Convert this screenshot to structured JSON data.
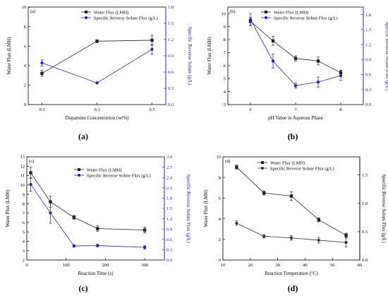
{
  "colors": {
    "water_series": "#222222",
    "solute_series_blue": "#1f1fd6",
    "solute_series_dark": "#333333",
    "axis_left": "#000000",
    "axis_right_blue": "#2222cc",
    "axis_right_dark": "#000000"
  },
  "chart_data": [
    {
      "type": "line",
      "panel_tag": "(a)",
      "caption": "(a)",
      "xlabel": "Dopamine Concentration (wt%)",
      "ylabel": "Water Flux (LMH)",
      "y2label": "Specific Reverse Solute (g/L)",
      "xlim": [
        0.05,
        0.55
      ],
      "ylim": [
        0,
        10
      ],
      "y2lim": [
        0,
        1.8
      ],
      "xticks": [
        0.1,
        0.3,
        0.5
      ],
      "xtick_labels": [
        "0.1",
        "0.3",
        "0.5"
      ],
      "yticks": [
        0,
        2,
        4,
        6,
        8,
        10
      ],
      "ytick_labels": [
        "0",
        "2",
        "4",
        "6",
        "8",
        "10"
      ],
      "y2ticks": [
        0,
        0.3,
        0.6,
        0.9,
        1.2,
        1.5,
        1.8
      ],
      "y2tick_labels": [
        "0.0",
        "0.3",
        "0.6",
        "0.9",
        "1.2",
        "1.5",
        "1.8"
      ],
      "legend_position": "top-right",
      "series": [
        {
          "name": "Water Flux (LMH)",
          "axis": "left",
          "marker": "square",
          "x": [
            0.1,
            0.3,
            0.5
          ],
          "values": [
            3.2,
            6.5,
            6.6
          ],
          "errors": [
            0.3,
            0.15,
            0.5
          ]
        },
        {
          "name": "Specific Reverse Solute Flux (g/L)",
          "axis": "right",
          "marker": "circle",
          "x": [
            0.1,
            0.3,
            0.5
          ],
          "values": [
            0.77,
            0.4,
            1.02
          ],
          "errors": [
            0.06,
            0.02,
            0.09
          ]
        }
      ]
    },
    {
      "type": "line",
      "panel_tag": "(b)",
      "caption": "(b)",
      "xlabel": "pH Value in Aqueous Phase",
      "ylabel": "Water Flux (LMH)",
      "y2label": "Specific Reverse Solute Flux (g/L)",
      "xlim": [
        5.5,
        8.5
      ],
      "ylim": [
        3,
        10.5
      ],
      "y2lim": [
        0,
        1.95
      ],
      "xticks": [
        6,
        7,
        8
      ],
      "xtick_labels": [
        "6",
        "7",
        "8"
      ],
      "yticks": [
        3,
        4,
        5,
        6,
        7,
        8,
        9,
        10
      ],
      "ytick_labels": [
        "3",
        "4",
        "5",
        "6",
        "7",
        "8",
        "9",
        "10"
      ],
      "y2ticks": [
        0,
        0.3,
        0.6,
        0.9,
        1.2,
        1.5,
        1.8
      ],
      "y2tick_labels": [
        "0.0",
        "0.3",
        "0.6",
        "0.9",
        "1.2",
        "1.5",
        "1.8"
      ],
      "legend_position": "top-right",
      "series": [
        {
          "name": "Water Flux  (LMH)",
          "axis": "left",
          "marker": "square",
          "x": [
            6,
            6.5,
            7,
            7.5,
            8
          ],
          "values": [
            9.4,
            7.9,
            6.55,
            6.35,
            5.45
          ],
          "errors": [
            0.3,
            0.35,
            0.2,
            0.3,
            0.2
          ]
        },
        {
          "name": "Specific Reverse Solute Flux (g/L)",
          "axis": "right",
          "marker": "circle",
          "x": [
            6,
            6.5,
            7,
            7.5,
            8
          ],
          "values": [
            1.7,
            0.87,
            0.38,
            0.45,
            0.58
          ],
          "errors": [
            0.12,
            0.14,
            0.05,
            0.1,
            0.1
          ]
        }
      ]
    },
    {
      "type": "line",
      "panel_tag": "(c)",
      "caption": "(c)",
      "xlabel": "Reaction Time (s)",
      "ylabel": "Water Flux (LMH)",
      "y2label": "Specific Reverse Solute Flux (g/L)",
      "xlim": [
        0,
        350
      ],
      "ylim": [
        2,
        13
      ],
      "y2lim": [
        0,
        3
      ],
      "xticks": [
        0,
        100,
        200,
        300
      ],
      "xtick_labels": [
        "0",
        "100",
        "200",
        "300"
      ],
      "yticks": [
        2,
        3,
        4,
        5,
        6,
        7,
        8,
        9,
        10,
        11,
        12,
        13
      ],
      "ytick_labels": [
        "2",
        "3",
        "4",
        "5",
        "6",
        "7",
        "8",
        "9",
        "10",
        "11",
        "12",
        "13"
      ],
      "y2ticks": [
        0,
        0.3,
        0.6,
        0.9,
        1.2,
        1.5,
        1.8,
        2.1,
        2.4,
        2.7,
        3.0
      ],
      "y2tick_labels": [
        "0.0",
        "0.3",
        "0.6",
        "0.9",
        "1.2",
        "1.5",
        "1.8",
        "2.1",
        "2.4",
        "2.7",
        "3.0"
      ],
      "legend_position": "top-right",
      "series": [
        {
          "name": "Water Flux  (LMH)",
          "axis": "left",
          "marker": "square",
          "x": [
            10,
            60,
            120,
            180,
            300
          ],
          "values": [
            11.3,
            8.2,
            6.55,
            5.35,
            5.2
          ],
          "errors": [
            0.6,
            0.6,
            0.2,
            0.3,
            0.3
          ]
        },
        {
          "name": "Specific Reverse Solute Flux (g/L)",
          "axis": "right",
          "marker": "circle",
          "x": [
            10,
            60,
            120,
            180,
            300
          ],
          "values": [
            2.2,
            1.37,
            0.41,
            0.42,
            0.37
          ],
          "errors": [
            0.2,
            0.3,
            0.04,
            0.04,
            0.05
          ]
        }
      ]
    },
    {
      "type": "line",
      "panel_tag": "(d)",
      "caption": "(d)",
      "xlabel": "Reaction Temperature (°C)",
      "ylabel": "Water Flux (LMH)",
      "y2label": "Specific Reverse Solute Flux (g/L)",
      "xlim": [
        10,
        60
      ],
      "ylim": [
        0,
        10
      ],
      "y2lim": [
        0,
        1.82
      ],
      "xticks": [
        10,
        20,
        30,
        40,
        50,
        60
      ],
      "xtick_labels": [
        "10",
        "20",
        "30",
        "40",
        "50",
        "60"
      ],
      "yticks": [
        0,
        2,
        4,
        6,
        8,
        10
      ],
      "ytick_labels": [
        "0",
        "2",
        "4",
        "6",
        "8",
        "10"
      ],
      "y2ticks": [
        0,
        0.5,
        1.0,
        1.5
      ],
      "y2tick_labels": [
        "0.0",
        "0.5",
        "1.0",
        "1.5"
      ],
      "legend_position": "top-right",
      "series": [
        {
          "name": "Water Flux (LMH)",
          "axis": "left",
          "marker": "square",
          "x": [
            15,
            25,
            35,
            45,
            55
          ],
          "values": [
            9.0,
            6.5,
            6.2,
            3.9,
            2.4
          ],
          "errors": [
            0.2,
            0.2,
            0.4,
            0.2,
            0.2
          ]
        },
        {
          "name": "Specific Reverse Solute Flux (g/L)",
          "axis": "right",
          "marker": "circle",
          "x": [
            15,
            25,
            35,
            45,
            55
          ],
          "values": [
            0.65,
            0.42,
            0.39,
            0.35,
            0.31
          ],
          "errors": [
            0.04,
            0.03,
            0.04,
            0.05,
            0.08
          ]
        }
      ]
    }
  ]
}
